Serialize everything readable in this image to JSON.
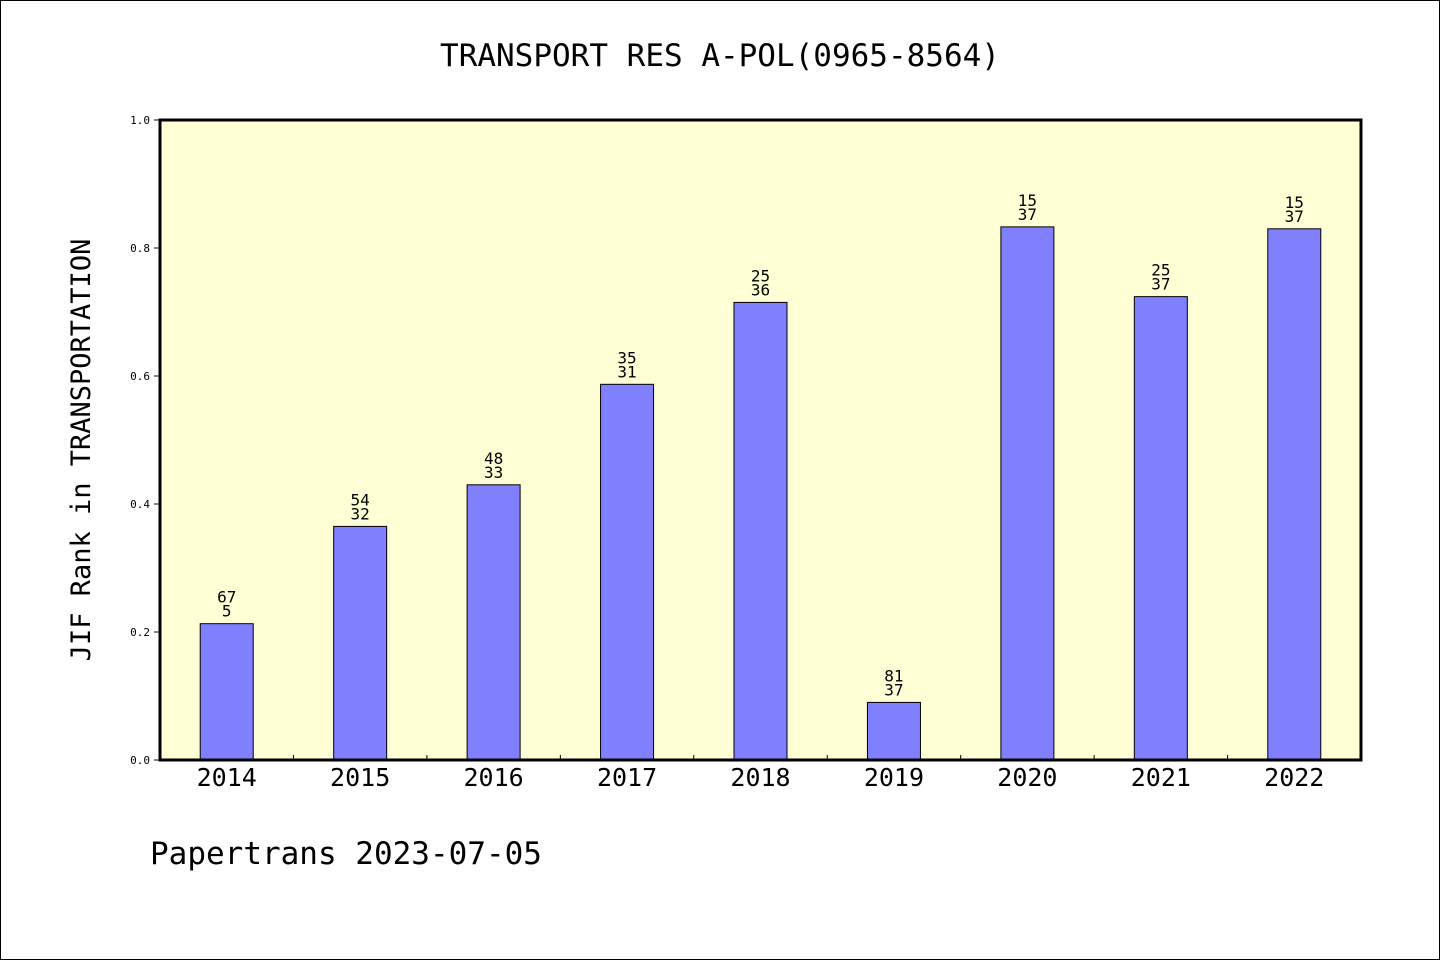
{
  "chart_data": {
    "type": "bar",
    "title": "TRANSPORT RES A-POL(0965-8564)",
    "xlabel": "",
    "ylabel": "JIF Rank in TRANSPORTATION",
    "ylim": [
      0,
      1.0
    ],
    "yticks": [
      "0.0",
      "0.2",
      "0.4",
      "0.6",
      "0.8",
      "1.0"
    ],
    "grid": false,
    "legend": "none",
    "categories": [
      "2014",
      "2015",
      "2016",
      "2017",
      "2018",
      "2019",
      "2020",
      "2021",
      "2022"
    ],
    "values": [
      0.213,
      0.365,
      0.43,
      0.587,
      0.715,
      0.09,
      0.833,
      0.724,
      0.83
    ],
    "label_top": [
      "67",
      "54",
      "48",
      "35",
      "25",
      "81",
      "15",
      "25",
      "15"
    ],
    "label_bottom": [
      "5",
      "32",
      "33",
      "31",
      "36",
      "37",
      "37",
      "37",
      "37"
    ],
    "colors": {
      "bar": "#8080ff",
      "plot_background": "#ffffd5",
      "axis": "#000000"
    }
  },
  "footer": {
    "credit": "Papertrans 2023-07-05"
  }
}
